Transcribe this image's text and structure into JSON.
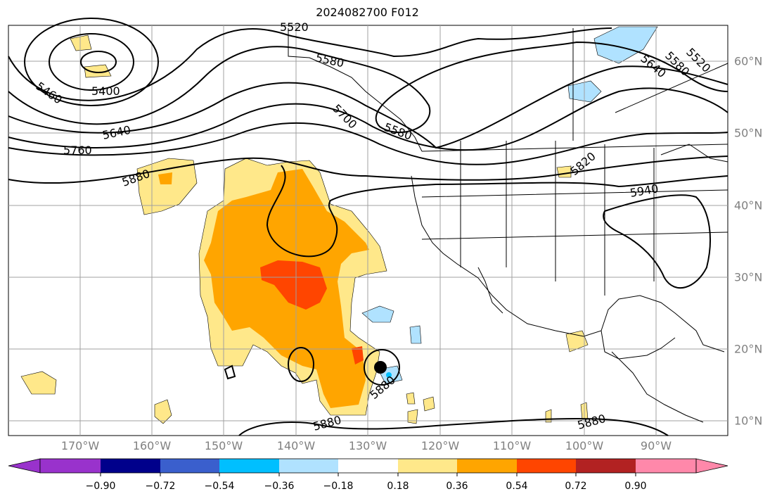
{
  "title": "2024082700 F012",
  "longitude_labels": [
    "170°W",
    "160°W",
    "150°W",
    "140°W",
    "130°W",
    "120°W",
    "110°W",
    "100°W",
    "90°W"
  ],
  "latitude_labels": [
    "60°N",
    "50°N",
    "40°N",
    "30°N",
    "20°N",
    "10°N"
  ],
  "contour_labels": [
    "5520",
    "5580",
    "5580",
    "5520",
    "5640",
    "5460",
    "5400",
    "5640",
    "5760",
    "5700",
    "5580",
    "5880",
    "5820",
    "5940",
    "5880",
    "5880",
    "5880"
  ],
  "colorbar": {
    "ticks": [
      "−0.90",
      "−0.72",
      "−0.54",
      "−0.36",
      "−0.18",
      "0.18",
      "0.36",
      "0.54",
      "0.72",
      "0.90"
    ],
    "colors": [
      "#9932cc",
      "#00008b",
      "#3a5fcd",
      "#00bfff",
      "#b0e2ff",
      "#ffffff",
      "#ffe88a",
      "#ffa500",
      "#ff4500",
      "#b22222",
      "#ff88aa"
    ]
  },
  "colors": {
    "land_border": "#000000",
    "grid": "#a0a0a0",
    "positive_fill": "#ffe88a",
    "strong_fill": "#ffa500",
    "max_fill": "#ff4500",
    "negative_fill": "#b0e2ff"
  }
}
